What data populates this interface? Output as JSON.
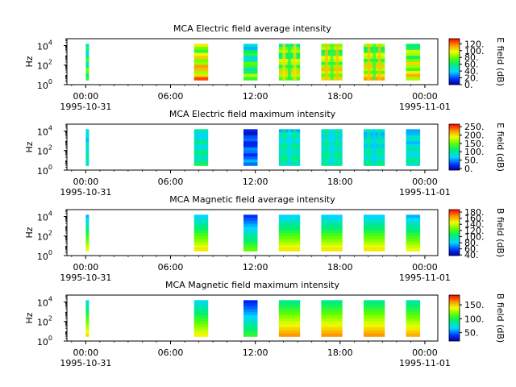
{
  "chart_data": [
    {
      "type": "heatmap",
      "title": "MCA  Electric field average intensity",
      "ylabel": "Hz",
      "y_scale": "log",
      "y_ticks": [
        "10",
        "10",
        "10"
      ],
      "y_tick_exponents": [
        "0",
        "2",
        "4"
      ],
      "x_ticks": [
        "00:00",
        "06:00",
        "12:00",
        "18:00",
        "00:00"
      ],
      "x_date_labels": [
        "1995-10-31",
        "1995-11-01"
      ],
      "x_range": [
        "1995-10-30T22:40",
        "1995-11-01T00:55"
      ],
      "y_range": [
        1,
        50000
      ],
      "colorbar_label": "E field (dB)",
      "colorbar_ticks": [
        "0.",
        "20.",
        "40.",
        "60.",
        "80.",
        "100.",
        "120."
      ],
      "colorbar_range": [
        0,
        135
      ],
      "colormap": "rainbow",
      "data_blocks": [
        {
          "start": "1995-10-31T00:00",
          "end": "1995-10-31T00:05",
          "level_db": 60
        },
        {
          "start": "1995-10-31T07:40",
          "end": "1995-10-31T08:40",
          "level_db": 95
        },
        {
          "start": "1995-10-31T11:10",
          "end": "1995-10-31T12:10",
          "level_db": 60
        },
        {
          "start": "1995-10-31T13:40",
          "end": "1995-10-31T15:10",
          "level_db": 80
        },
        {
          "start": "1995-10-31T16:40",
          "end": "1995-10-31T18:10",
          "level_db": 85
        },
        {
          "start": "1995-10-31T19:40",
          "end": "1995-10-31T21:10",
          "level_db": 85
        },
        {
          "start": "1995-10-31T22:40",
          "end": "1995-10-31T23:40",
          "level_db": 85
        }
      ]
    },
    {
      "type": "heatmap",
      "title": "MCA  Electric field maximum intensity",
      "ylabel": "Hz",
      "y_scale": "log",
      "y_ticks": [
        "10",
        "10",
        "10"
      ],
      "y_tick_exponents": [
        "0",
        "2",
        "4"
      ],
      "x_ticks": [
        "00:00",
        "06:00",
        "12:00",
        "18:00",
        "00:00"
      ],
      "x_date_labels": [
        "1995-10-31",
        "1995-11-01"
      ],
      "x_range": [
        "1995-10-30T22:40",
        "1995-11-01T00:55"
      ],
      "y_range": [
        1,
        50000
      ],
      "colorbar_label": "E field (dB)",
      "colorbar_ticks": [
        "0.",
        "50.",
        "100.",
        "150.",
        "200.",
        "250."
      ],
      "colorbar_range": [
        -10,
        265
      ],
      "colormap": "rainbow",
      "data_blocks": [
        {
          "start": "1995-10-31T00:00",
          "end": "1995-10-31T00:05",
          "level_db": 80
        },
        {
          "start": "1995-10-31T07:40",
          "end": "1995-10-31T08:40",
          "level_db": 90
        },
        {
          "start": "1995-10-31T11:10",
          "end": "1995-10-31T12:10",
          "level_db": 30
        },
        {
          "start": "1995-10-31T13:40",
          "end": "1995-10-31T15:10",
          "level_db": 85
        },
        {
          "start": "1995-10-31T16:40",
          "end": "1995-10-31T18:10",
          "level_db": 85
        },
        {
          "start": "1995-10-31T19:40",
          "end": "1995-10-31T21:10",
          "level_db": 80
        },
        {
          "start": "1995-10-31T22:40",
          "end": "1995-10-31T23:40",
          "level_db": 80
        }
      ]
    },
    {
      "type": "heatmap",
      "title": "MCA  Magnetic field average intensity",
      "ylabel": "Hz",
      "y_scale": "log",
      "y_ticks": [
        "10",
        "10",
        "10"
      ],
      "y_tick_exponents": [
        "0",
        "2",
        "4"
      ],
      "x_ticks": [
        "00:00",
        "06:00",
        "12:00",
        "18:00",
        "00:00"
      ],
      "x_date_labels": [
        "1995-10-31",
        "1995-11-01"
      ],
      "x_range": [
        "1995-10-30T22:40",
        "1995-11-01T00:55"
      ],
      "y_range": [
        1,
        50000
      ],
      "colorbar_label": "B field (dB)",
      "colorbar_ticks": [
        "40.",
        "60.",
        "80.",
        "100.",
        "120.",
        "140.",
        "160.",
        "180."
      ],
      "colorbar_range": [
        38,
        188
      ],
      "colormap": "rainbow",
      "data_blocks": [
        {
          "start": "1995-10-31T00:00",
          "end": "1995-10-31T00:05",
          "level_db": 110
        },
        {
          "start": "1995-10-31T07:40",
          "end": "1995-10-31T08:40",
          "level_db": 115
        },
        {
          "start": "1995-10-31T11:10",
          "end": "1995-10-31T12:10",
          "level_db": 90
        },
        {
          "start": "1995-10-31T13:40",
          "end": "1995-10-31T15:10",
          "level_db": 115
        },
        {
          "start": "1995-10-31T16:40",
          "end": "1995-10-31T18:10",
          "level_db": 115
        },
        {
          "start": "1995-10-31T19:40",
          "end": "1995-10-31T21:10",
          "level_db": 115
        },
        {
          "start": "1995-10-31T22:40",
          "end": "1995-10-31T23:40",
          "level_db": 110
        }
      ]
    },
    {
      "type": "heatmap",
      "title": "MCA  Magnetic field maximum intensity",
      "ylabel": "Hz",
      "y_scale": "log",
      "y_ticks": [
        "10",
        "10",
        "10"
      ],
      "y_tick_exponents": [
        "0",
        "2",
        "4"
      ],
      "x_ticks": [
        "00:00",
        "06:00",
        "12:00",
        "18:00",
        "00:00"
      ],
      "x_date_labels": [
        "1995-10-31",
        "1995-11-01"
      ],
      "x_range": [
        "1995-10-30T22:40",
        "1995-11-01T00:55"
      ],
      "y_range": [
        1,
        50000
      ],
      "colorbar_label": "B field (dB)",
      "colorbar_ticks": [
        "50.",
        "100.",
        "150."
      ],
      "colorbar_range": [
        20,
        185
      ],
      "colormap": "rainbow",
      "data_blocks": [
        {
          "start": "1995-10-31T00:00",
          "end": "1995-10-31T00:05",
          "level_db": 110
        },
        {
          "start": "1995-10-31T07:40",
          "end": "1995-10-31T08:40",
          "level_db": 105
        },
        {
          "start": "1995-10-31T11:10",
          "end": "1995-10-31T12:10",
          "level_db": 70
        },
        {
          "start": "1995-10-31T13:40",
          "end": "1995-10-31T15:10",
          "level_db": 125
        },
        {
          "start": "1995-10-31T16:40",
          "end": "1995-10-31T18:10",
          "level_db": 125
        },
        {
          "start": "1995-10-31T19:40",
          "end": "1995-10-31T21:10",
          "level_db": 125
        },
        {
          "start": "1995-10-31T22:40",
          "end": "1995-10-31T23:40",
          "level_db": 120
        }
      ]
    }
  ]
}
